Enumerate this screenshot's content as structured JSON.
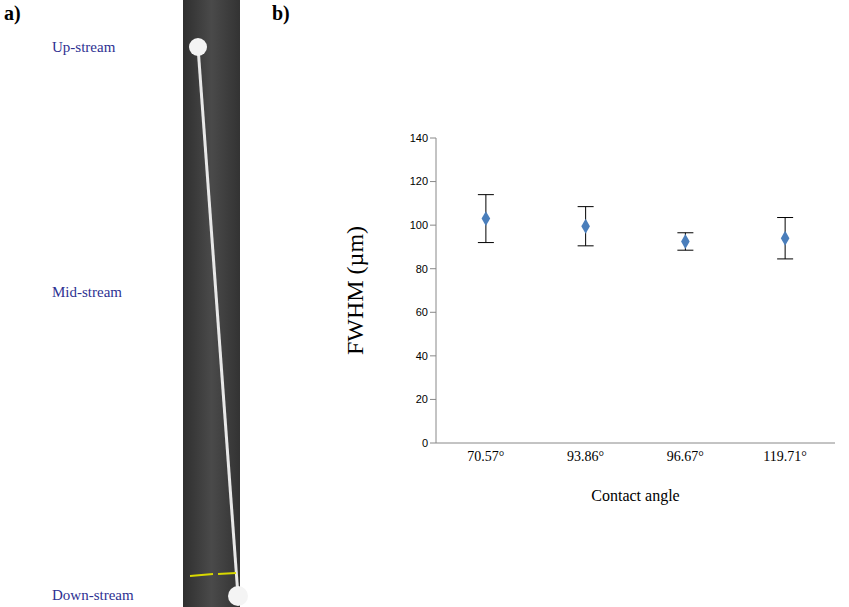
{
  "panel_labels": [
    "a)",
    "b)"
  ],
  "image": {
    "labels": [
      "Up-stream",
      "Mid-stream",
      "Down-stream"
    ]
  },
  "chart_data": {
    "type": "scatter",
    "categories": [
      "70.57°",
      "93.86°",
      "96.67°",
      "119.71°"
    ],
    "values": [
      103,
      99.5,
      92.5,
      94
    ],
    "errors": [
      11,
      9,
      4,
      9.5
    ],
    "color": "#4a7ebb",
    "marker": "diamond",
    "x_label": "Contact angle",
    "y_label": "FWHM (µm)",
    "ylim": [
      0,
      140
    ],
    "yticks": [
      0,
      20,
      40,
      60,
      80,
      100,
      120,
      140
    ],
    "grid": false
  }
}
